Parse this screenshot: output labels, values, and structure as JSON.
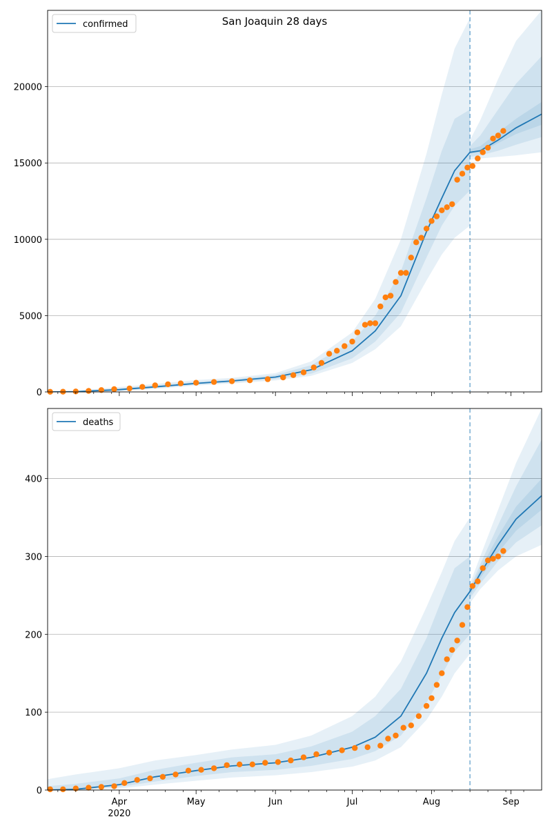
{
  "figure": {
    "title": "San Joaquin 28 days",
    "x_month_labels": [
      "Apr",
      "May",
      "Jun",
      "Jul",
      "Aug",
      "Sep"
    ],
    "x_year_label": "2020",
    "forecast_date": "2020-08-16"
  },
  "colors": {
    "model_line": "#1f77b4",
    "observed": "#ff7f0e",
    "band": "#1f77b4",
    "grid": "#b0b0b0",
    "forecast_line": "#1f77b4"
  },
  "chart_data": [
    {
      "type": "line",
      "legend": "confirmed",
      "legend_position": "top-left",
      "grid": "horizontal",
      "xlim": [
        "2020-03-04",
        "2020-09-13"
      ],
      "ylim": [
        0,
        25000
      ],
      "yticks": [
        0,
        5000,
        10000,
        15000,
        20000
      ],
      "model": {
        "x": [
          "2020-03-04",
          "2020-03-15",
          "2020-04-01",
          "2020-04-15",
          "2020-05-01",
          "2020-05-15",
          "2020-06-01",
          "2020-06-15",
          "2020-07-01",
          "2020-07-10",
          "2020-07-20",
          "2020-07-30",
          "2020-08-05",
          "2020-08-10",
          "2020-08-16",
          "2020-08-20",
          "2020-08-27",
          "2020-09-03",
          "2020-09-13"
        ],
        "y": [
          0,
          20,
          150,
          330,
          560,
          720,
          970,
          1450,
          2700,
          4000,
          6300,
          10500,
          12700,
          14500,
          15700,
          15800,
          16500,
          17300,
          18200
        ]
      },
      "bands": [
        {
          "x": [
            "2020-03-04",
            "2020-03-15",
            "2020-04-01",
            "2020-04-15",
            "2020-05-01",
            "2020-05-15",
            "2020-06-01",
            "2020-06-15",
            "2020-07-01",
            "2020-07-10",
            "2020-07-20",
            "2020-07-30",
            "2020-08-05",
            "2020-08-10",
            "2020-08-16"
          ],
          "lower": [
            0,
            0,
            40,
            200,
            420,
            550,
            750,
            1050,
            1900,
            2800,
            4300,
            7300,
            9000,
            10100,
            10900
          ],
          "upper": [
            0,
            80,
            320,
            520,
            780,
            920,
            1230,
            2000,
            3900,
            6100,
            10000,
            15600,
            19500,
            22500,
            24500
          ]
        },
        {
          "x": [
            "2020-03-04",
            "2020-03-15",
            "2020-04-01",
            "2020-04-15",
            "2020-05-01",
            "2020-05-15",
            "2020-06-01",
            "2020-06-15",
            "2020-07-01",
            "2020-07-10",
            "2020-07-20",
            "2020-07-30",
            "2020-08-05",
            "2020-08-10",
            "2020-08-16"
          ],
          "lower": [
            0,
            0,
            80,
            250,
            480,
            620,
            840,
            1200,
            2200,
            3300,
            5200,
            8800,
            10900,
            12200,
            13200
          ],
          "upper": [
            0,
            50,
            240,
            430,
            660,
            820,
            1110,
            1750,
            3300,
            5000,
            7900,
            12700,
            15800,
            17900,
            18500
          ]
        },
        {
          "x": [
            "2020-08-16",
            "2020-08-20",
            "2020-08-27",
            "2020-09-03",
            "2020-09-13"
          ],
          "lower": [
            15200,
            15300,
            15400,
            15500,
            15700
          ],
          "upper": [
            16500,
            17800,
            20500,
            23000,
            25000
          ]
        },
        {
          "x": [
            "2020-08-16",
            "2020-08-20",
            "2020-08-27",
            "2020-09-03",
            "2020-09-13"
          ],
          "lower": [
            15400,
            15500,
            15800,
            16200,
            16700
          ],
          "upper": [
            16100,
            16800,
            18500,
            20200,
            22000
          ]
        },
        {
          "x": [
            "2020-08-16",
            "2020-08-20",
            "2020-08-27",
            "2020-09-03",
            "2020-09-13"
          ],
          "lower": [
            15600,
            15700,
            16300,
            16900,
            17500
          ],
          "upper": [
            15900,
            16100,
            17000,
            17900,
            19000
          ]
        }
      ],
      "observed": {
        "x": [
          "2020-03-05",
          "2020-03-10",
          "2020-03-15",
          "2020-03-20",
          "2020-03-25",
          "2020-03-30",
          "2020-04-05",
          "2020-04-10",
          "2020-04-15",
          "2020-04-20",
          "2020-04-25",
          "2020-05-01",
          "2020-05-08",
          "2020-05-15",
          "2020-05-22",
          "2020-05-29",
          "2020-06-04",
          "2020-06-08",
          "2020-06-12",
          "2020-06-16",
          "2020-06-19",
          "2020-06-22",
          "2020-06-25",
          "2020-06-28",
          "2020-07-01",
          "2020-07-03",
          "2020-07-06",
          "2020-07-08",
          "2020-07-10",
          "2020-07-12",
          "2020-07-14",
          "2020-07-16",
          "2020-07-18",
          "2020-07-20",
          "2020-07-22",
          "2020-07-24",
          "2020-07-26",
          "2020-07-28",
          "2020-07-30",
          "2020-08-01",
          "2020-08-03",
          "2020-08-05",
          "2020-08-07",
          "2020-08-09",
          "2020-08-11",
          "2020-08-13",
          "2020-08-15",
          "2020-08-17",
          "2020-08-19",
          "2020-08-21",
          "2020-08-23",
          "2020-08-25",
          "2020-08-27",
          "2020-08-29"
        ],
        "y": [
          10,
          15,
          30,
          70,
          120,
          180,
          230,
          330,
          430,
          500,
          560,
          600,
          650,
          700,
          760,
          830,
          950,
          1100,
          1280,
          1600,
          1900,
          2500,
          2700,
          3000,
          3300,
          3900,
          4400,
          4500,
          4500,
          5600,
          6200,
          6300,
          7200,
          7800,
          7800,
          8800,
          9800,
          10100,
          10700,
          11200,
          11500,
          11900,
          12100,
          12300,
          13900,
          14300,
          14700,
          14800,
          15300,
          15700,
          16000,
          16600,
          16800,
          17100
        ]
      }
    },
    {
      "type": "line",
      "legend": "deaths",
      "legend_position": "top-left",
      "grid": "horizontal",
      "xlim": [
        "2020-03-04",
        "2020-09-13"
      ],
      "ylim": [
        0,
        490
      ],
      "yticks": [
        0,
        100,
        200,
        300,
        400
      ],
      "model": {
        "x": [
          "2020-03-04",
          "2020-03-15",
          "2020-04-01",
          "2020-04-15",
          "2020-05-01",
          "2020-05-15",
          "2020-06-01",
          "2020-06-15",
          "2020-07-01",
          "2020-07-10",
          "2020-07-20",
          "2020-07-30",
          "2020-08-05",
          "2020-08-10",
          "2020-08-16",
          "2020-08-20",
          "2020-08-27",
          "2020-09-03",
          "2020-09-13"
        ],
        "y": [
          0,
          1,
          7,
          17,
          25,
          31,
          35,
          42,
          55,
          68,
          95,
          150,
          195,
          228,
          255,
          278,
          315,
          348,
          378
        ]
      },
      "bands": [
        {
          "x": [
            "2020-03-04",
            "2020-03-15",
            "2020-04-01",
            "2020-04-15",
            "2020-05-01",
            "2020-05-15",
            "2020-06-01",
            "2020-06-15",
            "2020-07-01",
            "2020-07-10",
            "2020-07-20",
            "2020-07-30",
            "2020-08-05",
            "2020-08-10",
            "2020-08-16"
          ],
          "lower": [
            0,
            0,
            2,
            7,
            12,
            16,
            19,
            23,
            30,
            38,
            55,
            90,
            120,
            150,
            175
          ],
          "upper": [
            14,
            20,
            28,
            38,
            45,
            52,
            58,
            70,
            95,
            120,
            165,
            235,
            280,
            320,
            350
          ]
        },
        {
          "x": [
            "2020-03-04",
            "2020-03-15",
            "2020-04-01",
            "2020-04-15",
            "2020-05-01",
            "2020-05-15",
            "2020-06-01",
            "2020-06-15",
            "2020-07-01",
            "2020-07-10",
            "2020-07-20",
            "2020-07-30",
            "2020-08-05",
            "2020-08-10",
            "2020-08-16"
          ],
          "lower": [
            0,
            0,
            4,
            11,
            18,
            23,
            26,
            31,
            40,
            50,
            70,
            112,
            148,
            178,
            200
          ],
          "upper": [
            5,
            8,
            15,
            26,
            35,
            42,
            46,
            56,
            75,
            95,
            130,
            195,
            245,
            285,
            300
          ]
        },
        {
          "x": [
            "2020-08-16",
            "2020-08-20",
            "2020-08-27",
            "2020-09-03",
            "2020-09-13"
          ],
          "lower": [
            240,
            258,
            282,
            300,
            315
          ],
          "upper": [
            265,
            300,
            360,
            420,
            490
          ]
        },
        {
          "x": [
            "2020-08-16",
            "2020-08-20",
            "2020-08-27",
            "2020-09-03",
            "2020-09-13"
          ],
          "lower": [
            246,
            265,
            294,
            318,
            340
          ],
          "upper": [
            260,
            290,
            340,
            390,
            450
          ]
        },
        {
          "x": [
            "2020-08-16",
            "2020-08-20",
            "2020-08-27",
            "2020-09-03",
            "2020-09-13"
          ],
          "lower": [
            250,
            272,
            305,
            333,
            360
          ],
          "upper": [
            258,
            284,
            326,
            364,
            400
          ]
        }
      ],
      "observed": {
        "x": [
          "2020-03-05",
          "2020-03-10",
          "2020-03-15",
          "2020-03-20",
          "2020-03-25",
          "2020-03-30",
          "2020-04-03",
          "2020-04-08",
          "2020-04-13",
          "2020-04-18",
          "2020-04-23",
          "2020-04-28",
          "2020-05-03",
          "2020-05-08",
          "2020-05-13",
          "2020-05-18",
          "2020-05-23",
          "2020-05-28",
          "2020-06-02",
          "2020-06-07",
          "2020-06-12",
          "2020-06-17",
          "2020-06-22",
          "2020-06-27",
          "2020-07-02",
          "2020-07-07",
          "2020-07-12",
          "2020-07-15",
          "2020-07-18",
          "2020-07-21",
          "2020-07-24",
          "2020-07-27",
          "2020-07-30",
          "2020-08-01",
          "2020-08-03",
          "2020-08-05",
          "2020-08-07",
          "2020-08-09",
          "2020-08-11",
          "2020-08-13",
          "2020-08-15",
          "2020-08-17",
          "2020-08-19",
          "2020-08-21",
          "2020-08-23",
          "2020-08-25",
          "2020-08-27",
          "2020-08-29"
        ],
        "y": [
          1,
          1,
          2,
          3,
          4,
          5,
          9,
          13,
          15,
          17,
          20,
          25,
          26,
          28,
          32,
          33,
          33,
          35,
          36,
          38,
          42,
          46,
          48,
          51,
          54,
          55,
          57,
          66,
          70,
          80,
          83,
          95,
          108,
          118,
          135,
          150,
          168,
          180,
          192,
          212,
          235,
          262,
          268,
          285,
          295,
          297,
          300,
          307
        ]
      }
    }
  ]
}
